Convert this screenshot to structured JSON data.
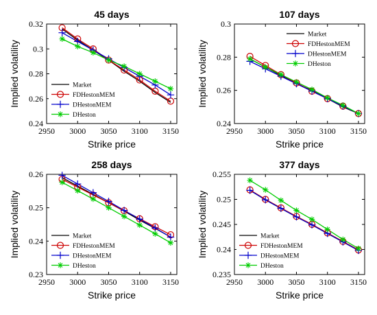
{
  "figure": {
    "series_colors": {
      "Market": "#000000",
      "FDHestonMEM": "#cc0000",
      "DHestonMEM": "#0000cc",
      "DHeston": "#00cc00"
    }
  },
  "chart_data": [
    {
      "type": "line",
      "title": "45 days",
      "xlabel": "Strike price",
      "ylabel": "Implied volatility",
      "xlim": [
        2950,
        3160
      ],
      "ylim": [
        0.24,
        0.32
      ],
      "xticks": [
        "2950",
        "3000",
        "3050",
        "3100",
        "3150"
      ],
      "yticks": [
        "0.24",
        "0.26",
        "0.28",
        "0.3",
        "0.32"
      ],
      "legend_position": "bottom-left",
      "x": [
        2975,
        3000,
        3025,
        3050,
        3075,
        3100,
        3125,
        3150
      ],
      "series": [
        {
          "name": "Market",
          "marker": "none",
          "values": [
            0.316,
            0.307,
            0.299,
            0.291,
            0.282,
            0.274,
            0.265,
            0.257
          ]
        },
        {
          "name": "FDHestonMEM",
          "marker": "circle",
          "values": [
            0.317,
            0.308,
            0.3,
            0.291,
            0.283,
            0.275,
            0.266,
            0.258
          ]
        },
        {
          "name": "DHestonMEM",
          "marker": "plus",
          "values": [
            0.313,
            0.306,
            0.299,
            0.292,
            0.285,
            0.278,
            0.271,
            0.263
          ]
        },
        {
          "name": "DHeston",
          "marker": "asterisk",
          "values": [
            0.308,
            0.302,
            0.297,
            0.291,
            0.286,
            0.28,
            0.274,
            0.268
          ]
        }
      ]
    },
    {
      "type": "line",
      "title": "107 days",
      "xlabel": "Strike price",
      "ylabel": "Implied volatility",
      "xlim": [
        2950,
        3160
      ],
      "ylim": [
        0.24,
        0.3
      ],
      "xticks": [
        "2950",
        "3000",
        "3050",
        "3100",
        "3150"
      ],
      "yticks": [
        "0.24",
        "0.26",
        "0.28",
        "0.3"
      ],
      "legend_position": "top-right",
      "x": [
        2975,
        3000,
        3025,
        3050,
        3075,
        3100,
        3125,
        3150
      ],
      "series": [
        {
          "name": "Market",
          "marker": "none",
          "values": [
            0.279,
            0.274,
            0.269,
            0.264,
            0.26,
            0.255,
            0.25,
            0.246
          ]
        },
        {
          "name": "FDHestonMEM",
          "marker": "circle",
          "values": [
            0.2805,
            0.275,
            0.2695,
            0.2645,
            0.2595,
            0.255,
            0.2505,
            0.246
          ]
        },
        {
          "name": "DHestonMEM",
          "marker": "plus",
          "values": [
            0.2775,
            0.273,
            0.2685,
            0.264,
            0.2595,
            0.255,
            0.2505,
            0.246
          ]
        },
        {
          "name": "DHeston",
          "marker": "asterisk",
          "values": [
            0.279,
            0.274,
            0.2695,
            0.265,
            0.2605,
            0.2555,
            0.251,
            0.246
          ]
        }
      ]
    },
    {
      "type": "line",
      "title": "258 days",
      "xlabel": "Strike price",
      "ylabel": "Implied volatility",
      "xlim": [
        2950,
        3160
      ],
      "ylim": [
        0.23,
        0.26
      ],
      "xticks": [
        "2950",
        "3000",
        "3050",
        "3100",
        "3150"
      ],
      "yticks": [
        "0.23",
        "0.24",
        "0.25",
        "0.26"
      ],
      "legend_position": "bottom-left",
      "x": [
        2975,
        3000,
        3025,
        3050,
        3075,
        3100,
        3125,
        3150
      ],
      "series": [
        {
          "name": "Market",
          "marker": "none",
          "values": [
            0.259,
            0.2565,
            0.254,
            0.2515,
            0.249,
            0.2463,
            0.2438,
            0.2412
          ]
        },
        {
          "name": "FDHestonMEM",
          "marker": "circle",
          "values": [
            0.2585,
            0.2562,
            0.2538,
            0.2515,
            0.2491,
            0.2467,
            0.2443,
            0.2419
          ]
        },
        {
          "name": "DHestonMEM",
          "marker": "plus",
          "values": [
            0.2597,
            0.2571,
            0.2545,
            0.2519,
            0.2492,
            0.2466,
            0.2439,
            0.2412
          ]
        },
        {
          "name": "DHeston",
          "marker": "asterisk",
          "values": [
            0.2576,
            0.2551,
            0.2526,
            0.25,
            0.2474,
            0.2448,
            0.2422,
            0.2395
          ]
        }
      ]
    },
    {
      "type": "line",
      "title": "377 days",
      "xlabel": "Strike price",
      "ylabel": "Implied volatility",
      "xlim": [
        2950,
        3160
      ],
      "ylim": [
        0.235,
        0.255
      ],
      "xticks": [
        "2950",
        "3000",
        "3050",
        "3100",
        "3150"
      ],
      "yticks": [
        "0.235",
        "0.24",
        "0.245",
        "0.25",
        "0.255"
      ],
      "legend_position": "bottom-left",
      "x": [
        2975,
        3000,
        3025,
        3050,
        3075,
        3100,
        3125,
        3150
      ],
      "series": [
        {
          "name": "Market",
          "marker": "none",
          "values": [
            0.2518,
            0.2499,
            0.2482,
            0.2465,
            0.2449,
            0.2432,
            0.2415,
            0.2398
          ]
        },
        {
          "name": "FDHestonMEM",
          "marker": "circle",
          "values": [
            0.2519,
            0.25,
            0.2483,
            0.2466,
            0.245,
            0.2433,
            0.2416,
            0.2399
          ]
        },
        {
          "name": "DHestonMEM",
          "marker": "plus",
          "values": [
            0.2518,
            0.2499,
            0.2482,
            0.2465,
            0.2449,
            0.2432,
            0.2415,
            0.2398
          ]
        },
        {
          "name": "DHeston",
          "marker": "asterisk",
          "values": [
            0.2538,
            0.2519,
            0.2498,
            0.2478,
            0.246,
            0.244,
            0.242,
            0.2402
          ]
        }
      ]
    }
  ]
}
